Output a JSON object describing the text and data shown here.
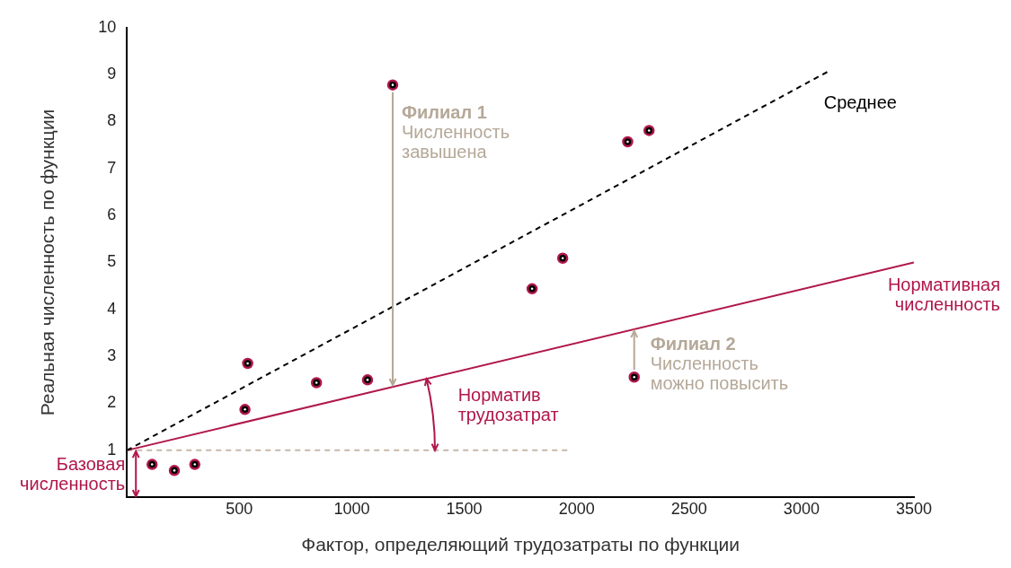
{
  "chart_data": {
    "type": "scatter",
    "xlabel": "Фактор, определяющий трудозатраты по функции",
    "ylabel": "Реальная численность по функции",
    "xlim": [
      0,
      3500
    ],
    "xticks": [
      500,
      1000,
      1500,
      2000,
      2500,
      3000,
      3500
    ],
    "ylim": [
      0,
      10
    ],
    "yticks": [
      1,
      2,
      3,
      4,
      5,
      6,
      7,
      8,
      9,
      10
    ],
    "grid": false,
    "legend": false,
    "marker": "circle",
    "series": [
      {
        "color": "#b0174a",
        "x": [
          112,
          211,
          302,
          525,
          537,
          843,
          1070,
          1182,
          1802,
          1938,
          2227,
          2322,
          2256
        ],
        "values": [
          0.7,
          0.57,
          0.7,
          1.87,
          2.85,
          2.44,
          2.5,
          8.78,
          4.44,
          5.09,
          7.57,
          7.81,
          2.56
        ]
      },
      {
        "type": "line",
        "name": "Среднее",
        "color": "#000000",
        "line_style": "dashed",
        "marker": "none",
        "x": [
          0,
          3120
        ],
        "values": [
          1,
          9.07
        ]
      },
      {
        "type": "line",
        "name": "Нормативная численность",
        "color": "#b0174a",
        "line_style": "solid",
        "marker": "none",
        "x": [
          0,
          3500
        ],
        "values": [
          1,
          5
        ]
      },
      {
        "type": "line",
        "color": "#c8b8a8",
        "line_style": "dashed",
        "marker": "none",
        "x": [
          0,
          1960
        ],
        "values": [
          1,
          1
        ]
      }
    ],
    "annotations": [
      {
        "text": "Филиал 1\nЧисленность завышена",
        "x": 1182,
        "y": 8.78
      },
      {
        "text": "Филиал 2\nЧисленность можно повысить",
        "x": 2256,
        "y": 2.56
      },
      {
        "text": "Базовая численность",
        "x": 0,
        "y": 1
      },
      {
        "text": "Норматив трудозатрат",
        "x": 1370,
        "y": 1
      }
    ]
  }
}
